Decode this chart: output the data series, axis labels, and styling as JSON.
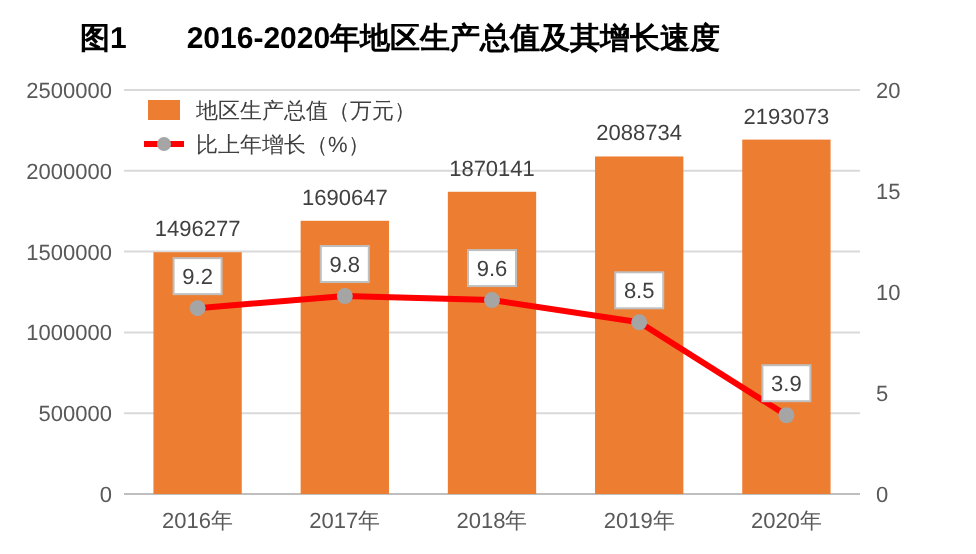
{
  "chart_data": {
    "type": "bar",
    "title": "图1　　2016-2020年地区生产总值及其增长速度",
    "categories": [
      "2016年",
      "2017年",
      "2018年",
      "2019年",
      "2020年"
    ],
    "series": [
      {
        "name": "地区生产总值（万元）",
        "color": "#ed7d31",
        "values": [
          1496277,
          1690647,
          1870141,
          2088734,
          2193073
        ]
      },
      {
        "name": "比上年增长（%）",
        "type": "line",
        "axis": "y2",
        "color": "#ff0000",
        "marker": "circle",
        "values": [
          9.2,
          9.8,
          9.6,
          8.5,
          3.9
        ]
      }
    ],
    "ylim": [
      0,
      2500000
    ],
    "yticks": [
      0,
      500000,
      1000000,
      1500000,
      2000000,
      2500000
    ],
    "y2lim": [
      0,
      20
    ],
    "y2ticks": [
      0,
      5,
      10,
      15,
      20
    ],
    "grid": "y",
    "legend": "top left",
    "data_labels": true
  }
}
